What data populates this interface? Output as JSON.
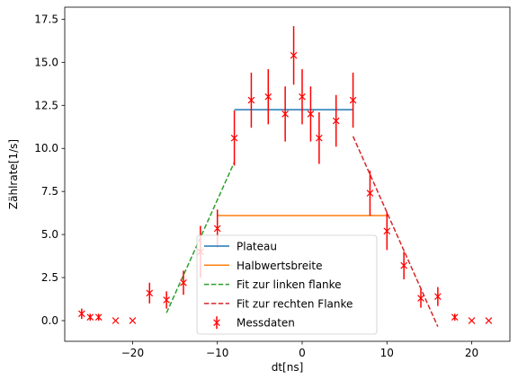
{
  "chart_data": {
    "type": "scatter",
    "title": "",
    "xlabel": "dt[ns]",
    "ylabel": "Zählrate[1/s]",
    "xlim": [
      -28,
      24.5
    ],
    "ylim": [
      -1.2,
      18.2
    ],
    "xticks": [
      -20,
      -10,
      0,
      10,
      20
    ],
    "xtick_labels": [
      "−20",
      "−10",
      "0",
      "10",
      "20"
    ],
    "yticks": [
      0.0,
      2.5,
      5.0,
      7.5,
      10.0,
      12.5,
      15.0,
      17.5
    ],
    "ytick_labels": [
      "0.0",
      "2.5",
      "5.0",
      "7.5",
      "10.0",
      "12.5",
      "15.0",
      "17.5"
    ],
    "grid": false,
    "legend_position": "lower-center",
    "legend": [
      {
        "label": "Plateau",
        "color": "#1f77b4",
        "style": "solid"
      },
      {
        "label": "Halbwertsbreite",
        "color": "#ff7f0e",
        "style": "solid"
      },
      {
        "label": "Fit zur linken flanke",
        "color": "#2ca02c",
        "style": "dashed"
      },
      {
        "label": "Fit zur rechten Flanke",
        "color": "#d62728",
        "style": "dashed"
      },
      {
        "label": "Messdaten",
        "color": "#ff0000",
        "style": "errorbar"
      }
    ],
    "lines": [
      {
        "name": "Plateau",
        "color": "#1f77b4",
        "dash": false,
        "x": [
          -8,
          6
        ],
        "y": [
          12.25,
          12.25
        ]
      },
      {
        "name": "Halbwertsbreite",
        "color": "#ff7f0e",
        "dash": false,
        "x": [
          -10,
          10
        ],
        "y": [
          6.1,
          6.1
        ]
      },
      {
        "name": "Fit zur linken flanke",
        "color": "#2ca02c",
        "dash": true,
        "x": [
          -16,
          -8
        ],
        "y": [
          0.45,
          9.2
        ]
      },
      {
        "name": "Fit zur rechten Flanke",
        "color": "#d62728",
        "dash": true,
        "x": [
          6,
          16
        ],
        "y": [
          10.7,
          -0.35
        ]
      }
    ],
    "points": {
      "name": "Messdaten",
      "color": "#ff0000",
      "x": [
        -26,
        -25,
        -24,
        -22,
        -20,
        -18,
        -16,
        -14,
        -12,
        -10,
        -8,
        -6,
        -4,
        -2,
        -1,
        0,
        1,
        2,
        4,
        6,
        8,
        10,
        12,
        14,
        16,
        18,
        20,
        22
      ],
      "y": [
        0.4,
        0.2,
        0.2,
        0.0,
        0.0,
        1.6,
        1.2,
        2.2,
        4.0,
        5.35,
        10.6,
        12.8,
        13.0,
        12.0,
        15.4,
        13.0,
        12.0,
        10.6,
        11.6,
        12.8,
        7.4,
        5.2,
        3.2,
        1.3,
        1.4,
        0.2,
        0.0,
        0.0
      ],
      "err": [
        0.3,
        0.2,
        0.2,
        0.0,
        0.0,
        0.6,
        0.5,
        0.7,
        1.5,
        1.1,
        1.6,
        1.6,
        1.6,
        1.6,
        1.7,
        1.6,
        1.6,
        1.5,
        1.5,
        1.6,
        1.3,
        1.1,
        0.8,
        0.55,
        0.55,
        0.2,
        0.0,
        0.0
      ]
    }
  }
}
